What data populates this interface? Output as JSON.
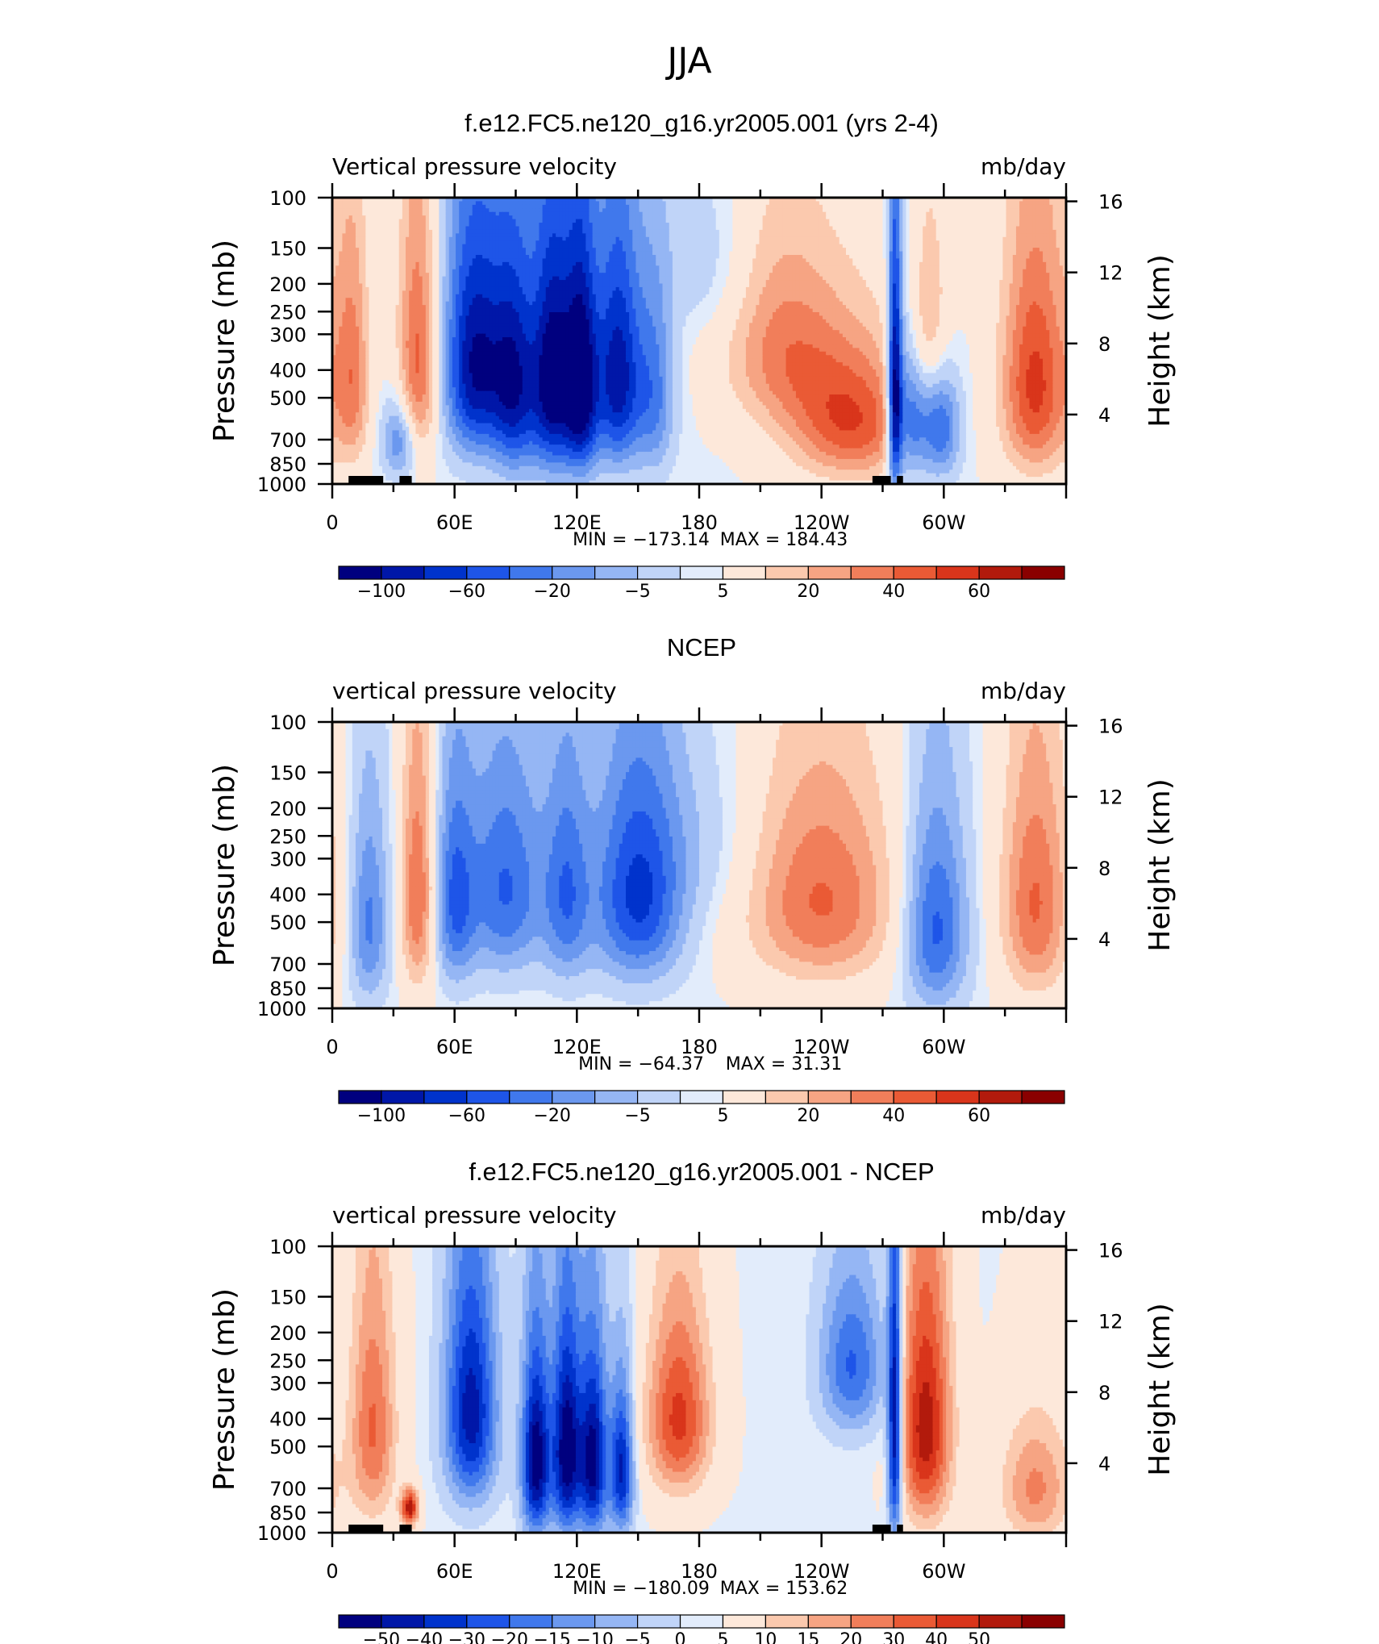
{
  "page_title": "JJA",
  "colors": {
    "scale": [
      "#00007f",
      "#0017a8",
      "#0033cc",
      "#1e55e8",
      "#4078ec",
      "#6b98ef",
      "#95b6f4",
      "#c0d4f8",
      "#e2ecfb",
      "#fde8da",
      "#fbc9ae",
      "#f6a483",
      "#f17e5a",
      "#ea5a35",
      "#d9351b",
      "#b21a0c",
      "#8a0000"
    ]
  },
  "chart_data": [
    {
      "type": "heatmap",
      "title": "f.e12.FC5.ne120_g16.yr2005.001 (yrs 2-4)",
      "left_label": "Vertical pressure velocity",
      "right_label": "mb/day",
      "ylabel": "Pressure (mb)",
      "y2label": "Height (km)",
      "x_ticks": [
        "0",
        "60E",
        "120E",
        "180",
        "120W",
        "60W"
      ],
      "y_ticks": [
        "100",
        "150",
        "200",
        "250",
        "300",
        "400",
        "500",
        "700",
        "850",
        "1000"
      ],
      "y2_ticks": [
        "16",
        "12",
        "8",
        "4"
      ],
      "min_label": "MIN = −173.14",
      "max_label": "MAX = 184.43",
      "colorbar_labels": [
        "−100",
        "−60",
        "−20",
        "−5",
        "5",
        "20",
        "40",
        "60"
      ],
      "features": [
        {
          "lon": 10,
          "p": 420,
          "width": 6,
          "depth": 400,
          "value": 0.45
        },
        {
          "lon": 33,
          "p": 700,
          "width": 6,
          "depth": 220,
          "value": -0.45
        },
        {
          "lon": 42,
          "p": 380,
          "width": 7,
          "depth": 380,
          "value": 0.6
        },
        {
          "lon": 70,
          "p": 380,
          "width": 11,
          "depth": 370,
          "value": -0.9
        },
        {
          "lon": 90,
          "p": 450,
          "width": 8,
          "depth": 420,
          "value": -0.75
        },
        {
          "lon": 108,
          "p": 430,
          "width": 7,
          "depth": 420,
          "value": -0.95
        },
        {
          "lon": 122,
          "p": 450,
          "width": 6,
          "depth": 420,
          "value": -1.0
        },
        {
          "lon": 140,
          "p": 420,
          "width": 8,
          "depth": 400,
          "value": -0.85
        },
        {
          "lon": 158,
          "p": 480,
          "width": 7,
          "depth": 380,
          "value": -0.45
        },
        {
          "lon": 185,
          "p": 170,
          "width": 16,
          "depth": 120,
          "value": -0.15
        },
        {
          "lon": 220,
          "p": 330,
          "width": 20,
          "depth": 260,
          "value": 0.42
        },
        {
          "lon": 255,
          "p": 600,
          "width": 22,
          "depth": 330,
          "value": 0.65
        },
        {
          "lon": 276,
          "p": 500,
          "width": 2.5,
          "depth": 500,
          "value": -1.0
        },
        {
          "lon": 283,
          "p": 560,
          "width": 6,
          "depth": 340,
          "value": -0.7
        },
        {
          "lon": 298,
          "p": 620,
          "width": 7,
          "depth": 300,
          "value": -0.6
        },
        {
          "lon": 292,
          "p": 280,
          "width": 8,
          "depth": 220,
          "value": 0.4
        },
        {
          "lon": 345,
          "p": 450,
          "width": 12,
          "depth": 420,
          "value": 0.7
        }
      ],
      "land_segments": [
        [
          8,
          25
        ],
        [
          33,
          39
        ],
        [
          265,
          274
        ],
        [
          277,
          280
        ]
      ]
    },
    {
      "type": "heatmap",
      "title": "NCEP",
      "left_label": "vertical pressure velocity",
      "right_label": "mb/day",
      "ylabel": "Pressure (mb)",
      "y2label": "Height (km)",
      "x_ticks": [
        "0",
        "60E",
        "120E",
        "180",
        "120W",
        "60W"
      ],
      "y_ticks": [
        "100",
        "150",
        "200",
        "250",
        "300",
        "400",
        "500",
        "700",
        "850",
        "1000"
      ],
      "y2_ticks": [
        "16",
        "12",
        "8",
        "4"
      ],
      "min_label": "MIN = −64.37",
      "max_label": "MAX =   31.31",
      "colorbar_labels": [
        "−100",
        "−60",
        "−20",
        "−5",
        "5",
        "20",
        "40",
        "60"
      ],
      "features": [
        {
          "lon": 18,
          "p": 500,
          "width": 7,
          "depth": 400,
          "value": -0.45
        },
        {
          "lon": 42,
          "p": 400,
          "width": 6,
          "depth": 400,
          "value": 0.55
        },
        {
          "lon": 60,
          "p": 420,
          "width": 7,
          "depth": 360,
          "value": -0.5
        },
        {
          "lon": 85,
          "p": 380,
          "width": 14,
          "depth": 340,
          "value": -0.55
        },
        {
          "lon": 115,
          "p": 400,
          "width": 8,
          "depth": 360,
          "value": -0.45
        },
        {
          "lon": 150,
          "p": 400,
          "width": 16,
          "depth": 360,
          "value": -0.7
        },
        {
          "lon": 185,
          "p": 260,
          "width": 18,
          "depth": 200,
          "value": -0.12
        },
        {
          "lon": 240,
          "p": 420,
          "width": 26,
          "depth": 360,
          "value": 0.55
        },
        {
          "lon": 296,
          "p": 520,
          "width": 11,
          "depth": 420,
          "value": -0.6
        },
        {
          "lon": 345,
          "p": 430,
          "width": 12,
          "depth": 420,
          "value": 0.55
        }
      ],
      "land_segments": []
    },
    {
      "type": "heatmap",
      "title": "f.e12.FC5.ne120_g16.yr2005.001 - NCEP",
      "left_label": "vertical pressure velocity",
      "right_label": "mb/day",
      "ylabel": "Pressure (mb)",
      "y2label": "Height (km)",
      "x_ticks": [
        "0",
        "60E",
        "120E",
        "180",
        "120W",
        "60W"
      ],
      "y_ticks": [
        "100",
        "150",
        "200",
        "250",
        "300",
        "400",
        "500",
        "700",
        "850",
        "1000"
      ],
      "y2_ticks": [
        "16",
        "12",
        "8",
        "4"
      ],
      "min_label": "MIN = −180.09",
      "max_label": "MAX = 153.62",
      "colorbar_labels": [
        "−50",
        "−40",
        "−30",
        "−20",
        "−15",
        "−10",
        "−5",
        "0",
        "5",
        "10",
        "15",
        "20",
        "30",
        "40",
        "50"
      ],
      "features": [
        {
          "lon": 20,
          "p": 430,
          "width": 8,
          "depth": 420,
          "value": 0.55
        },
        {
          "lon": 38,
          "p": 820,
          "width": 3,
          "depth": 120,
          "value": 0.85
        },
        {
          "lon": 68,
          "p": 380,
          "width": 9,
          "depth": 360,
          "value": -0.85
        },
        {
          "lon": 100,
          "p": 560,
          "width": 5,
          "depth": 420,
          "value": -1.0
        },
        {
          "lon": 115,
          "p": 520,
          "width": 5,
          "depth": 440,
          "value": -1.0
        },
        {
          "lon": 128,
          "p": 560,
          "width": 5,
          "depth": 420,
          "value": -0.95
        },
        {
          "lon": 142,
          "p": 600,
          "width": 4,
          "depth": 360,
          "value": -0.8
        },
        {
          "lon": 170,
          "p": 400,
          "width": 11,
          "depth": 300,
          "value": 0.7
        },
        {
          "lon": 255,
          "p": 260,
          "width": 11,
          "depth": 170,
          "value": -0.55
        },
        {
          "lon": 276,
          "p": 450,
          "width": 2.5,
          "depth": 520,
          "value": -1.0
        },
        {
          "lon": 291,
          "p": 430,
          "width": 9,
          "depth": 440,
          "value": 0.85
        },
        {
          "lon": 345,
          "p": 700,
          "width": 12,
          "depth": 350,
          "value": 0.45
        }
      ],
      "land_segments": [
        [
          8,
          25
        ],
        [
          33,
          39
        ],
        [
          265,
          274
        ],
        [
          277,
          280
        ]
      ]
    }
  ]
}
